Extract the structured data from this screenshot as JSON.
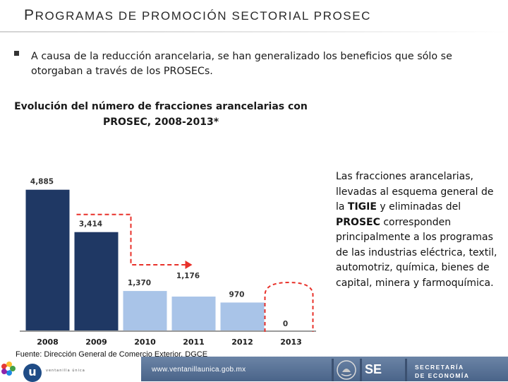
{
  "header": {
    "title_initial": "P",
    "title_rest": "ROGRAMAS DE PROMOCIÓN SECTORIAL PROSEC"
  },
  "bullet": {
    "text": "A causa de la reducción arancelaria, se han generalizado los beneficios que sólo se otorgaban a través de los PROSECs."
  },
  "chart_data": {
    "type": "bar",
    "title": "Evolución del número de fracciones arancelarias con PROSEC, 2008-2013*",
    "categories": [
      "2008",
      "2009",
      "2010",
      "2011",
      "2012",
      "2013"
    ],
    "values": [
      4885,
      3414,
      1370,
      1176,
      970,
      0
    ],
    "value_labels": [
      "4,885",
      "3,414",
      "1,370",
      "1,176",
      "970",
      "0"
    ],
    "series_colors": [
      "#1f3864",
      "#1f3864",
      "#a9c4e8",
      "#a9c4e8",
      "#a9c4e8",
      "none"
    ],
    "ylim": [
      0,
      5000
    ],
    "grid": false,
    "annotations": [
      "dashed red arrow from 2009 to 2011",
      "dashed red circle around 2013"
    ]
  },
  "note": {
    "part1": "Las fracciones  arancelarias, llevadas al esquema general de la ",
    "bold1": "TIGIE",
    "part2": "  y eliminadas del ",
    "bold2": "PROSEC",
    "part3": " corresponden principalmente a los programas de las industrias eléctrica, textil, automotriz, química, bienes de capital, minera y farmoquímica."
  },
  "source": {
    "label": "Fuente:",
    "text": " Dirección General de Comercio Exterior, DGCE"
  },
  "footer": {
    "url": "www.ventanillaunica.gob.mx",
    "logo_letter": "u",
    "logo_text": "ventanilla única",
    "se_label": "SE",
    "secretaria_line1": "SECRETARÍA",
    "secretaria_line2": "DE ECONOMÍA"
  },
  "colors": {
    "dark_bar": "#1f3864",
    "light_bar": "#a9c4e8",
    "annotation_red": "#e8312a",
    "footer_blue": "#5a7398"
  }
}
